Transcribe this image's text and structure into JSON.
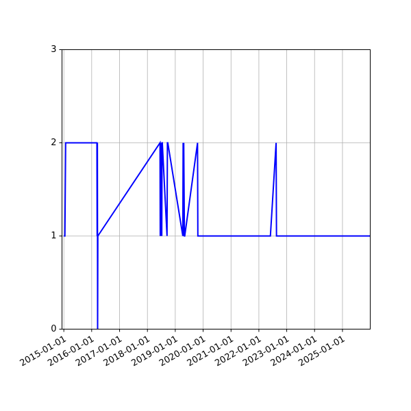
{
  "chart_data": {
    "type": "line",
    "title": "",
    "xlabel": "",
    "ylabel": "",
    "x_axis_type": "date",
    "xlim": [
      "2014-12-08",
      "2025-12-31"
    ],
    "ylim": [
      0,
      3
    ],
    "grid": true,
    "line_color": "#0000ff",
    "x_ticks": [
      "2015-01-01",
      "2016-01-01",
      "2017-01-01",
      "2018-01-01",
      "2019-01-01",
      "2020-01-01",
      "2021-01-01",
      "2022-01-01",
      "2023-01-01",
      "2024-01-01",
      "2025-01-01"
    ],
    "y_ticks": [
      "0",
      "1",
      "2",
      "3"
    ],
    "series": [
      {
        "x": [
          "2015-01-01",
          "2015-01-15",
          "2015-01-25",
          "2016-03-10",
          "2016-03-13",
          "2016-03-16",
          "2016-03-19",
          "2016-03-22",
          "2018-06-15",
          "2018-06-18",
          "2018-06-25",
          "2018-06-28",
          "2018-07-05",
          "2018-07-08",
          "2018-07-12",
          "2018-07-15",
          "2018-09-15",
          "2018-09-20",
          "2018-09-25",
          "2019-04-10",
          "2019-04-14",
          "2019-04-18",
          "2019-04-22",
          "2019-05-01",
          "2019-05-05",
          "2019-10-20",
          "2019-10-24",
          "2019-10-28",
          "2022-06-01",
          "2022-08-15",
          "2022-08-20",
          "2025-12-31"
        ],
        "y": [
          1,
          1,
          2,
          2,
          1,
          2,
          0,
          1,
          2,
          1,
          2,
          1,
          2,
          1,
          2,
          2,
          1,
          2,
          2,
          1,
          2,
          1,
          2,
          1,
          1,
          2,
          1,
          1,
          1,
          2,
          1,
          1
        ]
      }
    ]
  }
}
